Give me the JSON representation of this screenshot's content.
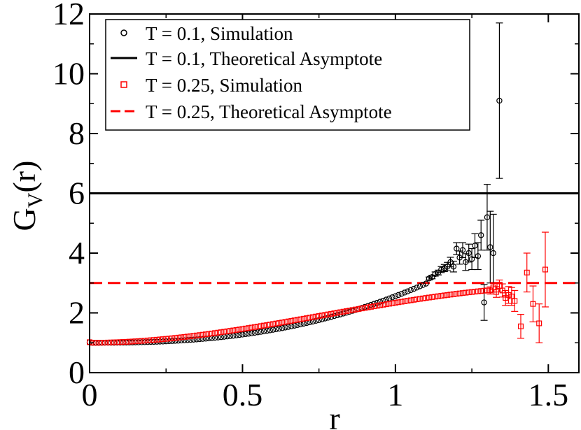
{
  "chart_data": {
    "type": "scatter",
    "xlabel": "r",
    "ylabel_main": "G",
    "ylabel_sub": "V",
    "ylabel_tail": "(r)",
    "xlim": [
      0,
      1.6
    ],
    "ylim": [
      0,
      12
    ],
    "x_ticks": [
      {
        "v": 0,
        "label": "0"
      },
      {
        "v": 0.5,
        "label": "0.5"
      },
      {
        "v": 1,
        "label": "1"
      },
      {
        "v": 1.5,
        "label": "1.5"
      }
    ],
    "y_ticks": [
      {
        "v": 0,
        "label": "0"
      },
      {
        "v": 2,
        "label": "2"
      },
      {
        "v": 4,
        "label": "4"
      },
      {
        "v": 6,
        "label": "6"
      },
      {
        "v": 8,
        "label": "8"
      },
      {
        "v": 10,
        "label": "10"
      },
      {
        "v": 12,
        "label": "12"
      }
    ],
    "legend_position": "top-left",
    "legend": [
      {
        "label": "T = 0.1, Simulation",
        "kind": "marker-circle",
        "color": "#000000"
      },
      {
        "label": "T = 0.1, Theoretical Asymptote",
        "kind": "line-solid",
        "color": "#000000"
      },
      {
        "label": "T = 0.25, Simulation",
        "kind": "marker-square",
        "color": "#ff0000"
      },
      {
        "label": "T = 0.25, Theoretical Asymptote",
        "kind": "line-dashed",
        "color": "#ff0000"
      }
    ],
    "asymptotes": [
      {
        "name": "T = 0.1, Theoretical Asymptote",
        "y": 6,
        "color": "#000000",
        "style": "solid"
      },
      {
        "name": "T = 0.25, Theoretical Asymptote",
        "y": 3,
        "color": "#ff0000",
        "style": "dashed"
      }
    ],
    "series": [
      {
        "name": "T = 0.1, Simulation",
        "marker": "circle",
        "color": "#000000",
        "smooth": {
          "x_start": 0.0,
          "x_end": 1.1,
          "step": 0.01,
          "formula": "y = 1 + 1.56*x^2.5, y(0)=1.02",
          "y_at_x_end": 3.0
        },
        "tail": [
          {
            "x": 1.11,
            "y": 3.15,
            "err": 0.05
          },
          {
            "x": 1.12,
            "y": 3.2,
            "err": 0.06
          },
          {
            "x": 1.13,
            "y": 3.3,
            "err": 0.07
          },
          {
            "x": 1.14,
            "y": 3.35,
            "err": 0.08
          },
          {
            "x": 1.15,
            "y": 3.45,
            "err": 0.1
          },
          {
            "x": 1.16,
            "y": 3.5,
            "err": 0.12
          },
          {
            "x": 1.17,
            "y": 3.55,
            "err": 0.14
          },
          {
            "x": 1.18,
            "y": 3.7,
            "err": 0.16
          },
          {
            "x": 1.19,
            "y": 3.55,
            "err": 0.18
          },
          {
            "x": 1.2,
            "y": 4.15,
            "err": 0.2
          },
          {
            "x": 1.21,
            "y": 3.85,
            "err": 0.22
          },
          {
            "x": 1.22,
            "y": 4.1,
            "err": 0.25
          },
          {
            "x": 1.23,
            "y": 3.7,
            "err": 0.28
          },
          {
            "x": 1.24,
            "y": 4.0,
            "err": 0.3
          },
          {
            "x": 1.25,
            "y": 3.8,
            "err": 0.35
          },
          {
            "x": 1.26,
            "y": 4.25,
            "err": 0.4
          },
          {
            "x": 1.27,
            "y": 3.9,
            "err": 0.45
          },
          {
            "x": 1.28,
            "y": 4.6,
            "err": 0.5
          },
          {
            "x": 1.29,
            "y": 2.35,
            "err": 0.6
          },
          {
            "x": 1.3,
            "y": 5.2,
            "err": 1.1
          },
          {
            "x": 1.31,
            "y": 4.2,
            "err": 1.2
          },
          {
            "x": 1.32,
            "y": 4.0,
            "err": 1.3
          },
          {
            "x": 1.34,
            "y": 9.1,
            "err": 2.6
          }
        ]
      },
      {
        "name": "T = 0.25, Simulation",
        "marker": "square",
        "color": "#ff0000",
        "smooth": {
          "x_start": 0.0,
          "x_end": 1.3,
          "step": 0.01,
          "formula": "y = 1 + 2.35*x^2 - 1.01*x^3, y(0)=1.02",
          "y_at_x_end": 2.75
        },
        "tail": [
          {
            "x": 1.31,
            "y": 2.75,
            "err": 0.12
          },
          {
            "x": 1.32,
            "y": 2.85,
            "err": 0.15
          },
          {
            "x": 1.33,
            "y": 2.7,
            "err": 0.18
          },
          {
            "x": 1.34,
            "y": 2.9,
            "err": 0.2
          },
          {
            "x": 1.35,
            "y": 2.75,
            "err": 0.22
          },
          {
            "x": 1.36,
            "y": 2.5,
            "err": 0.25
          },
          {
            "x": 1.37,
            "y": 2.6,
            "err": 0.28
          },
          {
            "x": 1.38,
            "y": 2.55,
            "err": 0.3
          },
          {
            "x": 1.39,
            "y": 2.4,
            "err": 0.35
          },
          {
            "x": 1.41,
            "y": 1.55,
            "err": 0.4
          },
          {
            "x": 1.43,
            "y": 3.35,
            "err": 0.65
          },
          {
            "x": 1.45,
            "y": 2.3,
            "err": 0.6
          },
          {
            "x": 1.47,
            "y": 1.65,
            "err": 0.65
          },
          {
            "x": 1.49,
            "y": 3.45,
            "err": 1.25
          }
        ]
      }
    ]
  }
}
